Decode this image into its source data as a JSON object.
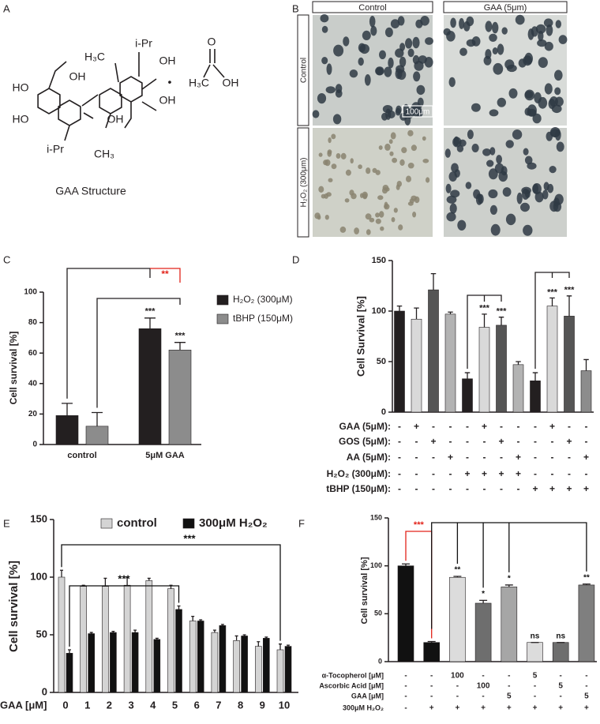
{
  "panels": {
    "A": {
      "letter": "A",
      "caption": "GAA Structure",
      "atoms": [
        "HO",
        "HO",
        "OH",
        "H₃C",
        "i-Pr",
        "OH",
        "OH",
        "OH",
        "CH₃",
        "i-Pr",
        "•",
        "O",
        "H₃C",
        "OH"
      ]
    },
    "B": {
      "letter": "B",
      "columns": [
        "Control",
        "GAA (5μm)"
      ],
      "rows": [
        "Control",
        "H₂O₂ (300μm)"
      ],
      "scale_bar": "100μm"
    }
  },
  "chart_data": [
    {
      "panel": "C",
      "type": "bar",
      "ylabel": "Cell survival [%]",
      "categories": [
        "control",
        "5μM GAA"
      ],
      "series": [
        {
          "name": "H₂O₂ (300μM)",
          "color": "#231f20",
          "values": [
            19,
            76
          ],
          "errors": [
            8,
            7
          ]
        },
        {
          "name": "tBHP (150μM)",
          "color": "#8c8c8c",
          "values": [
            12,
            62
          ],
          "errors": [
            9,
            5
          ]
        }
      ],
      "ylim": [
        0,
        100
      ],
      "yticks": [
        0,
        20,
        40,
        60,
        80,
        100
      ],
      "legend": "right",
      "annotations": [
        {
          "text": "***",
          "color": "#231f20"
        },
        {
          "text": "***",
          "color": "#231f20"
        },
        {
          "text": "**",
          "color": "#e2231a"
        }
      ]
    },
    {
      "panel": "D",
      "type": "bar",
      "ylabel": "Cell Survival [%]",
      "values": [
        100,
        92,
        121,
        97,
        33,
        84,
        86,
        47,
        31,
        105,
        95,
        41
      ],
      "errors": [
        5,
        11,
        16,
        2,
        6,
        13,
        8,
        3,
        8,
        8,
        20,
        11
      ],
      "colors": [
        "#231f20",
        "#d9d9d9",
        "#555555",
        "#b3b3b3",
        "#231f20",
        "#d9d9d9",
        "#555555",
        "#b3b3b3",
        "#231f20",
        "#d9d9d9",
        "#555555",
        "#8c8c8c"
      ],
      "ylim": [
        0,
        150
      ],
      "yticks": [
        0,
        50,
        100,
        150
      ],
      "conditions": [
        {
          "label": "GAA (5μM):",
          "signs": [
            "-",
            "+",
            "-",
            "-",
            "-",
            "+",
            "-",
            "-",
            "-",
            "+",
            "-",
            "-"
          ]
        },
        {
          "label": "GOS (5μM):",
          "signs": [
            "-",
            "-",
            "+",
            "-",
            "-",
            "-",
            "+",
            "-",
            "-",
            "-",
            "+",
            "-"
          ]
        },
        {
          "label": "AA (5μM):",
          "signs": [
            "-",
            "-",
            "-",
            "+",
            "-",
            "-",
            "-",
            "+",
            "-",
            "-",
            "-",
            "+"
          ]
        },
        {
          "label": "H₂O₂ (300μM):",
          "signs": [
            "-",
            "-",
            "-",
            "-",
            "+",
            "+",
            "+",
            "+",
            "-",
            "-",
            "-",
            "-"
          ]
        },
        {
          "label": "tBHP (150μM):",
          "signs": [
            "-",
            "-",
            "-",
            "-",
            "-",
            "-",
            "-",
            "-",
            "+",
            "+",
            "+",
            "+"
          ]
        }
      ],
      "annotations": [
        {
          "text": "***",
          "color": "#231f20"
        },
        {
          "text": "***",
          "color": "#231f20"
        },
        {
          "text": "***",
          "color": "#231f20"
        },
        {
          "text": "***",
          "color": "#231f20"
        }
      ]
    },
    {
      "panel": "E",
      "type": "bar",
      "ylabel": "Cell survival [%]",
      "xlabel": "GAA [μM]",
      "categories": [
        "0",
        "1",
        "2",
        "3",
        "4",
        "5",
        "6",
        "7",
        "8",
        "9",
        "10"
      ],
      "series": [
        {
          "name": "control",
          "color": "#d4d4d4",
          "values": [
            100,
            92,
            92,
            93,
            97,
            90,
            62,
            52,
            45,
            40,
            37
          ],
          "errors": [
            6,
            1,
            7,
            7,
            2,
            3,
            4,
            2,
            4,
            4,
            5
          ]
        },
        {
          "name": "300μM H₂O₂",
          "color": "#111111",
          "values": [
            34,
            51,
            52,
            52,
            46,
            72,
            62,
            58,
            49,
            47,
            40
          ],
          "errors": [
            3,
            1,
            1,
            2,
            1,
            3,
            1,
            1,
            1,
            1,
            1
          ]
        }
      ],
      "ylim": [
        0,
        150
      ],
      "yticks": [
        0,
        50,
        100,
        150
      ],
      "legend": "top",
      "annotations": [
        {
          "text": "***",
          "color": "#111111"
        },
        {
          "text": "***",
          "color": "#111111"
        }
      ]
    },
    {
      "panel": "F",
      "type": "bar",
      "ylabel": "Cell survival [%]",
      "values": [
        100,
        20,
        88,
        61,
        78,
        20,
        20,
        80
      ],
      "errors": [
        2,
        1,
        1,
        3,
        2,
        0,
        0,
        1
      ],
      "colors": [
        "#111111",
        "#111111",
        "#dcdcdc",
        "#6e6e6e",
        "#a6a6a6",
        "#dcdcdc",
        "#6e6e6e",
        "#7f7f7f"
      ],
      "ylim": [
        0,
        150
      ],
      "yticks": [
        0,
        50,
        100,
        150
      ],
      "conditions": [
        {
          "label": "α-Tocopherol [μM]",
          "signs": [
            "-",
            "-",
            "100",
            "-",
            "-",
            "5",
            "-",
            "-"
          ]
        },
        {
          "label": "Ascorbic Acid [μM]",
          "signs": [
            "-",
            "-",
            "-",
            "100",
            "-",
            "-",
            "5",
            "-"
          ]
        },
        {
          "label": "GAA [μM]",
          "signs": [
            "-",
            "-",
            "-",
            "-",
            "5",
            "-",
            "-",
            "5"
          ]
        },
        {
          "label": "300μM H₂O₂",
          "signs": [
            "-",
            "+",
            "+",
            "+",
            "+",
            "+",
            "+",
            "+"
          ]
        }
      ],
      "annotations": [
        {
          "text": "***",
          "color": "#e2231a"
        },
        {
          "text": "**",
          "color": "#111111"
        },
        {
          "text": "*",
          "color": "#111111"
        },
        {
          "text": "*",
          "color": "#111111"
        },
        {
          "text": "ns",
          "color": "#111111"
        },
        {
          "text": "ns",
          "color": "#111111"
        },
        {
          "text": "**",
          "color": "#111111"
        }
      ]
    }
  ]
}
